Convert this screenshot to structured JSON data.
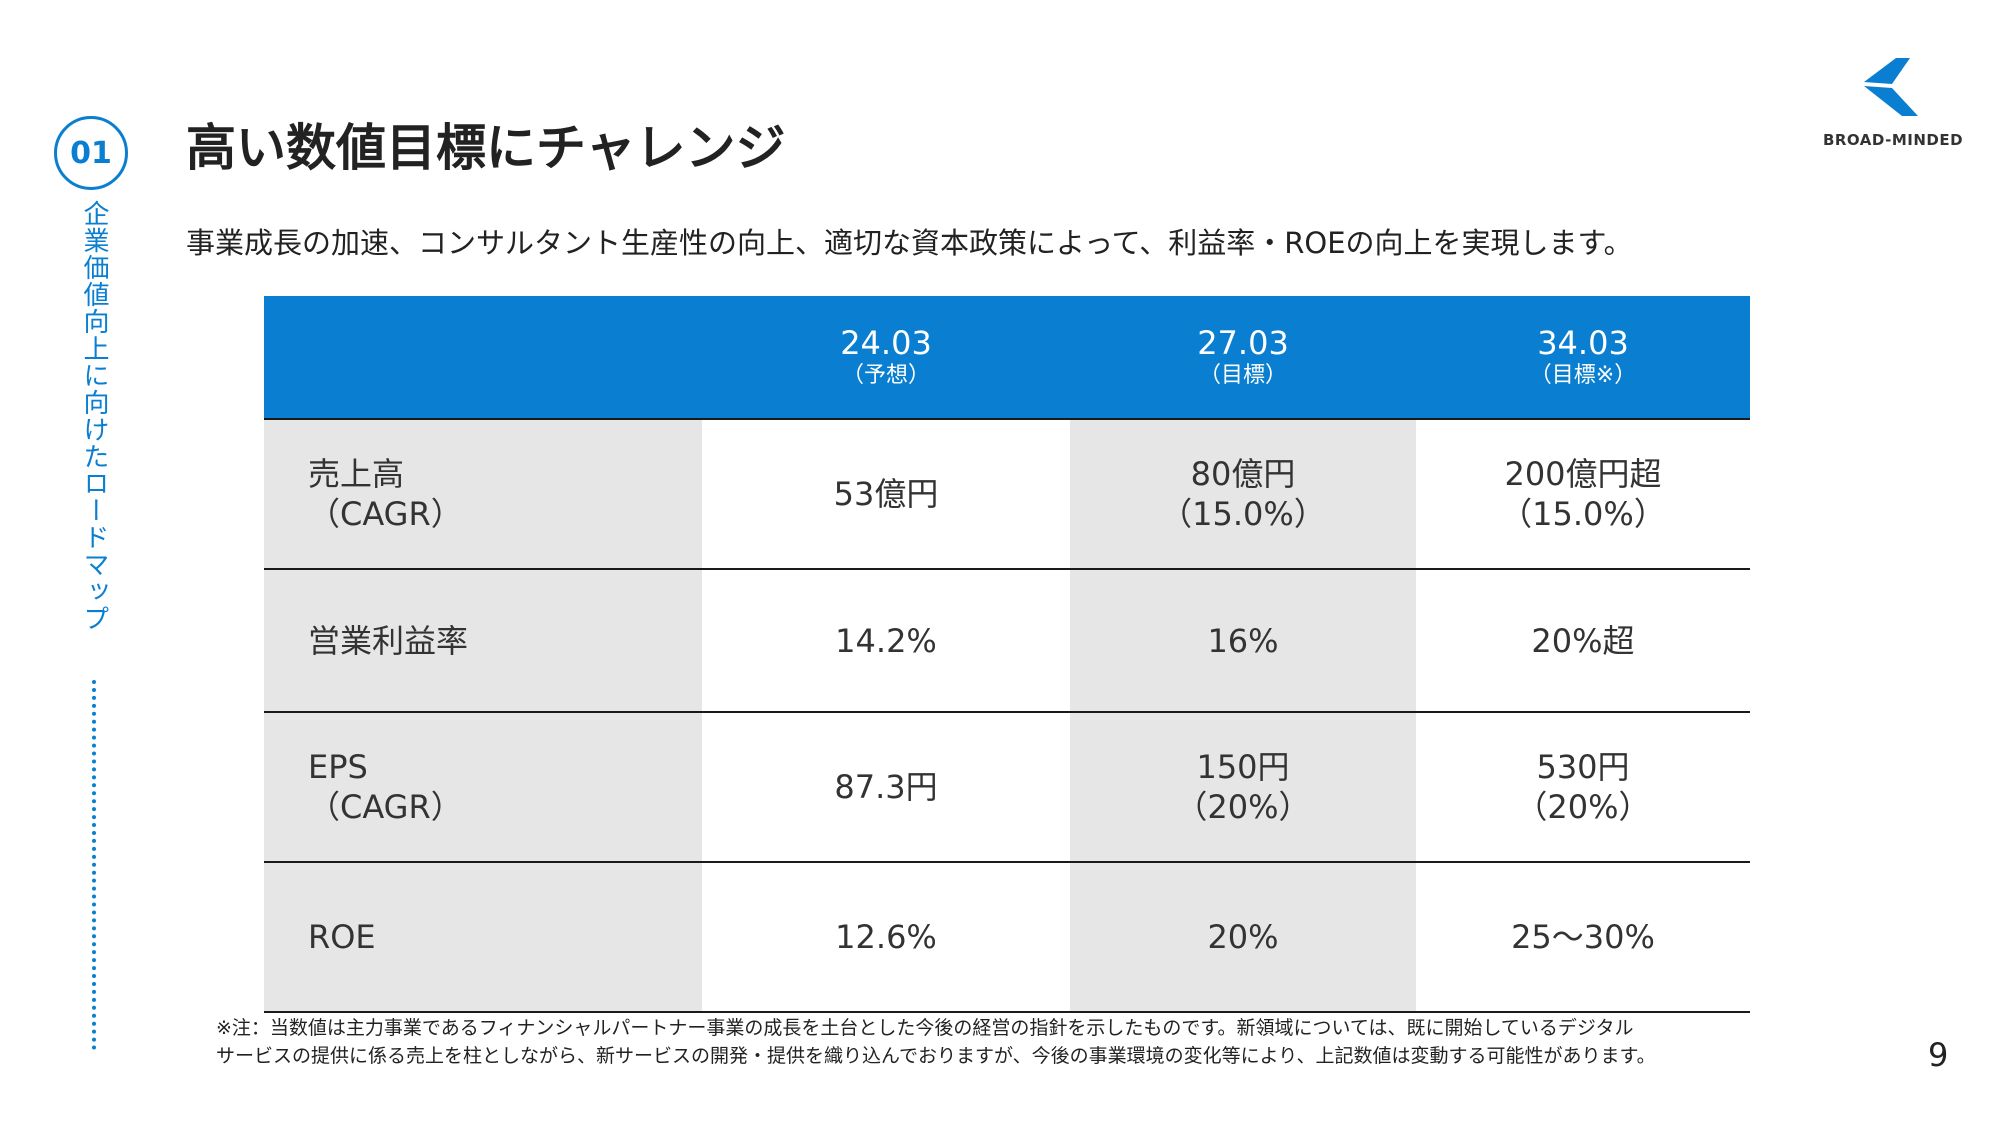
{
  "section": {
    "number": "01",
    "label": "企業価値向上に向けたロードマップ"
  },
  "page_title": "高い数値目標にチャレンジ",
  "lead_text": "事業成長の加速、コンサルタント生産性の向上、適切な資本政策によって、利益率・ROEの向上を実現します。",
  "logo": {
    "text": "BROAD-MINDED",
    "mark_icon": "brand-k-mark-icon",
    "color": "#0a7fd1"
  },
  "colors": {
    "accent": "#0a7fd1",
    "label_column_bg": "#e6e6e6"
  },
  "table": {
    "columns": [
      {
        "year": "24.03",
        "note": "（予想）"
      },
      {
        "year": "27.03",
        "note": "（目標）"
      },
      {
        "year": "34.03",
        "note": "（目標※）"
      }
    ],
    "rows": [
      {
        "label": [
          "売上高",
          "（CAGR）"
        ],
        "cells": [
          [
            "53億円"
          ],
          [
            "80億円",
            "（15.0%）"
          ],
          [
            "200億円超",
            "（15.0%）"
          ]
        ]
      },
      {
        "label": [
          "営業利益率"
        ],
        "cells": [
          [
            "14.2%"
          ],
          [
            "16%"
          ],
          [
            "20%超"
          ]
        ]
      },
      {
        "label": [
          "EPS",
          "（CAGR）"
        ],
        "cells": [
          [
            "87.3円"
          ],
          [
            "150円",
            "（20%）"
          ],
          [
            "530円",
            "（20%）"
          ]
        ]
      },
      {
        "label": [
          "ROE"
        ],
        "cells": [
          [
            "12.6%"
          ],
          [
            "20%"
          ],
          [
            "25～30%"
          ]
        ]
      }
    ]
  },
  "footnote": [
    "※注：当数値は主力事業であるフィナンシャルパートナー事業の成長を土台とした今後の経営の指針を示したものです。新領域については、既に開始しているデジタル",
    "サービスの提供に係る売上を柱としながら、新サービスの開発・提供を織り込んでおりますが、今後の事業環境の変化等により、上記数値は変動する可能性があります。"
  ],
  "page_number": "9"
}
